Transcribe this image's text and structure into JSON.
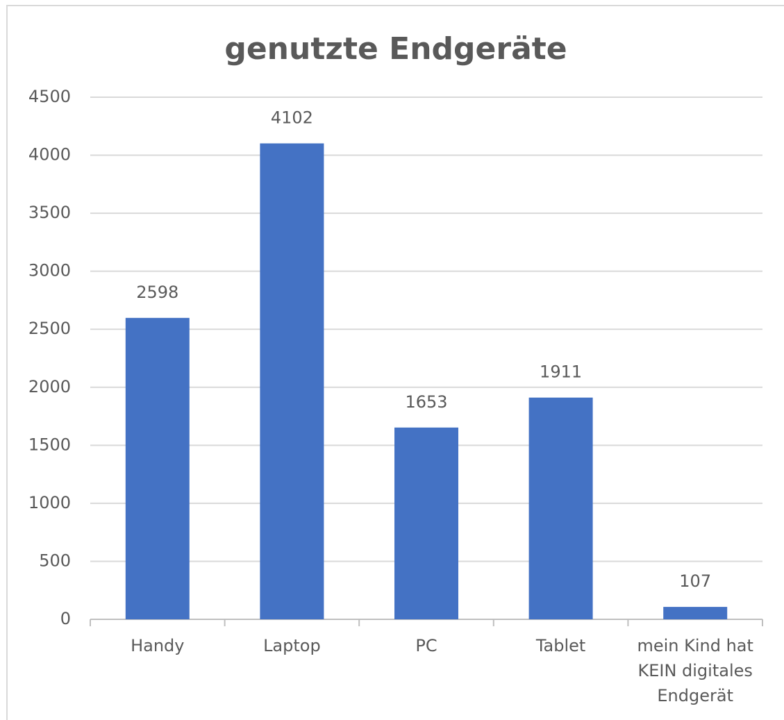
{
  "chart_data": {
    "type": "bar",
    "title": "genutzte Endgeräte",
    "categories": [
      "Handy",
      "Laptop",
      "PC",
      "Tablet",
      "mein Kind hat KEIN digitales Endgerät"
    ],
    "values": [
      2598,
      4102,
      1653,
      1911,
      107
    ],
    "color": "#4472c4",
    "ylim": [
      0,
      4500
    ],
    "yticks": [
      0,
      500,
      1000,
      1500,
      2000,
      2500,
      3000,
      3500,
      4000,
      4500
    ],
    "grid": true
  }
}
